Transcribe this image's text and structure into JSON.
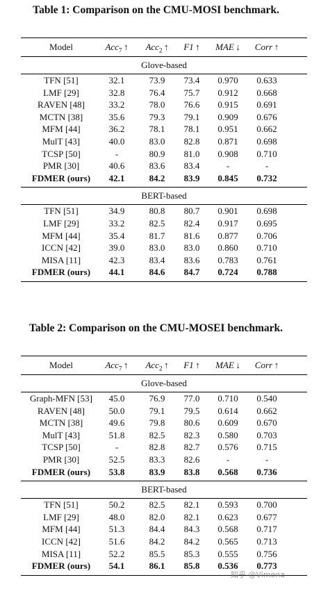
{
  "table1": {
    "caption": "Table 1: Comparison on the CMU-MOSI benchmark.",
    "header": {
      "model": "Model",
      "acc7": "Acc",
      "acc7_sub": "7",
      "acc7_arrow": "↑",
      "acc2": "Acc",
      "acc2_sub": "2",
      "acc2_arrow": "↑",
      "f1": "F1",
      "f1_arrow": "↑",
      "mae": "MAE",
      "mae_arrow": "↓",
      "corr": "Corr",
      "corr_arrow": "↑"
    },
    "sections": [
      {
        "title": "Glove-based",
        "rows": [
          [
            "TFN [51]",
            "32.1",
            "73.9",
            "73.4",
            "0.970",
            "0.633"
          ],
          [
            "LMF [29]",
            "32.8",
            "76.4",
            "75.7",
            "0.912",
            "0.668"
          ],
          [
            "RAVEN [48]",
            "33.2",
            "78.0",
            "76.6",
            "0.915",
            "0.691"
          ],
          [
            "MCTN [38]",
            "35.6",
            "79.3",
            "79.1",
            "0.909",
            "0.676"
          ],
          [
            "MFM [44]",
            "36.2",
            "78.1",
            "78.1",
            "0.951",
            "0.662"
          ],
          [
            "MulT [43]",
            "40.0",
            "83.0",
            "82.8",
            "0.871",
            "0.698"
          ],
          [
            "TCSP [50]",
            "-",
            "80.9",
            "81.0",
            "0.908",
            "0.710"
          ],
          [
            "PMR [30]",
            "40.6",
            "83.6",
            "83.4",
            "-",
            "-"
          ],
          [
            "FDMER (ours)",
            "42.1",
            "84.2",
            "83.9",
            "0.845",
            "0.732"
          ]
        ]
      },
      {
        "title": "BERT-based",
        "rows": [
          [
            "TFN [51]",
            "34.9",
            "80.8",
            "80.7",
            "0.901",
            "0.698"
          ],
          [
            "LMF [29]",
            "33.2",
            "82.5",
            "82.4",
            "0.917",
            "0.695"
          ],
          [
            "MFM [44]",
            "35.4",
            "81.7",
            "81.6",
            "0.877",
            "0.706"
          ],
          [
            "ICCN [42]",
            "39.0",
            "83.0",
            "83.0",
            "0.860",
            "0.710"
          ],
          [
            "MISA [11]",
            "42.3",
            "83.4",
            "83.6",
            "0.783",
            "0.761"
          ],
          [
            "FDMER (ours)",
            "44.1",
            "84.6",
            "84.7",
            "0.724",
            "0.788"
          ]
        ]
      }
    ]
  },
  "table2": {
    "caption": "Table 2: Comparison on the CMU-MOSEI benchmark.",
    "header": {
      "model": "Model",
      "acc7": "Acc",
      "acc7_sub": "7",
      "acc7_arrow": "↑",
      "acc2": "Acc",
      "acc2_sub": "2",
      "acc2_arrow": "↑",
      "f1": "F1",
      "f1_arrow": "↑",
      "mae": "MAE",
      "mae_arrow": "↓",
      "corr": "Corr",
      "corr_arrow": "↑"
    },
    "sections": [
      {
        "title": "Glove-based",
        "rows": [
          [
            "Graph-MFN [53]",
            "45.0",
            "76.9",
            "77.0",
            "0.710",
            "0.540"
          ],
          [
            "RAVEN [48]",
            "50.0",
            "79.1",
            "79.5",
            "0.614",
            "0.662"
          ],
          [
            "MCTN [38]",
            "49.6",
            "79.8",
            "80.6",
            "0.609",
            "0.670"
          ],
          [
            "MulT [43]",
            "51.8",
            "82.5",
            "82.3",
            "0.580",
            "0.703"
          ],
          [
            "TCSP [50]",
            "-",
            "82.8",
            "82.7",
            "0.576",
            "0.715"
          ],
          [
            "PMR [30]",
            "52.5",
            "83.3",
            "82.6",
            "-",
            "-"
          ],
          [
            "FDMER (ours)",
            "53.8",
            "83.9",
            "83.8",
            "0.568",
            "0.736"
          ]
        ]
      },
      {
        "title": "BERT-based",
        "rows": [
          [
            "TFN [51]",
            "50.2",
            "82.5",
            "82.1",
            "0.593",
            "0.700"
          ],
          [
            "LMF [29]",
            "48.0",
            "82.0",
            "82.1",
            "0.623",
            "0.677"
          ],
          [
            "MFM [44]",
            "51.3",
            "84.4",
            "84.3",
            "0.568",
            "0.717"
          ],
          [
            "ICCN [42]",
            "51.6",
            "84.2",
            "84.2",
            "0.565",
            "0.713"
          ],
          [
            "MISA [11]",
            "52.2",
            "85.5",
            "85.3",
            "0.555",
            "0.756"
          ],
          [
            "FDMER (ours)",
            "54.1",
            "86.1",
            "85.8",
            "0.536",
            "0.773"
          ]
        ]
      }
    ]
  },
  "watermark": "知乎 @Vimena"
}
